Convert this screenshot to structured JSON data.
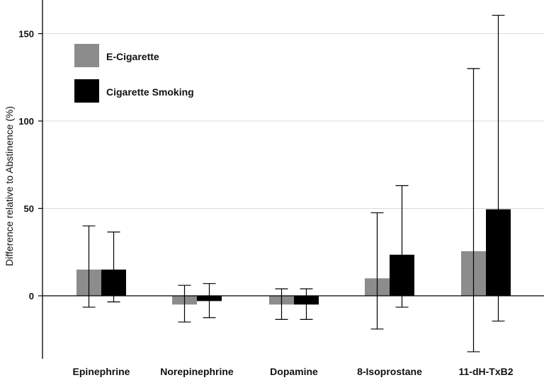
{
  "chart_data": {
    "type": "bar",
    "title": "",
    "xlabel": "",
    "ylabel": "Difference relative to Abstinence (%)",
    "ylim": [
      -33,
      165
    ],
    "yticks": [
      0,
      50,
      100,
      150
    ],
    "grid": true,
    "legend_position": "top-left",
    "categories": [
      "Epinephrine",
      "Norepinephrine",
      "Dopamine",
      "8-Isoprostane",
      "11-dH-TxB2"
    ],
    "series": [
      {
        "name": "E-Cigarette",
        "color": "#8c8c8c",
        "values": [
          15,
          -5,
          -5,
          10,
          25.5
        ],
        "error_low": [
          -6.5,
          -15,
          -13.5,
          -19,
          -32
        ],
        "error_high": [
          40,
          6,
          4,
          47.5,
          130
        ]
      },
      {
        "name": "Cigarette Smoking",
        "color": "#000000",
        "values": [
          15,
          -3,
          -5,
          23.5,
          49.5
        ],
        "error_low": [
          -3.5,
          -12.5,
          -13.5,
          -6.5,
          -14.5
        ],
        "error_high": [
          36.5,
          7,
          4,
          63,
          160.5
        ]
      }
    ]
  }
}
